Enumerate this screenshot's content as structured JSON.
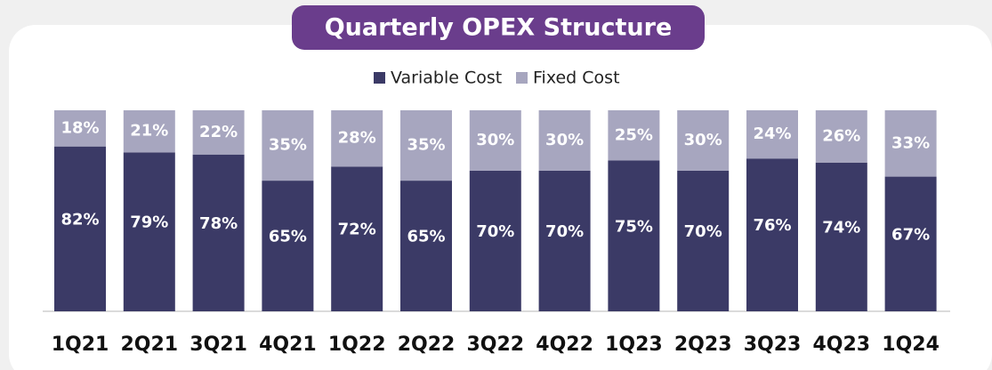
{
  "chart_data": {
    "type": "stacked_bar",
    "title": "Quarterly OPEX Structure",
    "categories": [
      "1Q21",
      "2Q21",
      "3Q21",
      "4Q21",
      "1Q22",
      "2Q22",
      "3Q22",
      "4Q22",
      "1Q23",
      "2Q23",
      "3Q23",
      "4Q23",
      "1Q24"
    ],
    "series": [
      {
        "name": "Variable Cost",
        "color": "#3b3a66",
        "values": [
          82,
          79,
          78,
          65,
          72,
          65,
          70,
          70,
          75,
          70,
          76,
          74,
          67
        ],
        "value_labels": [
          "82%",
          "79%",
          "78%",
          "65%",
          "72%",
          "65%",
          "70%",
          "70%",
          "75%",
          "70%",
          "76%",
          "74%",
          "67%"
        ]
      },
      {
        "name": "Fixed Cost",
        "color": "#a7a6bf",
        "values": [
          18,
          21,
          22,
          35,
          28,
          35,
          30,
          30,
          25,
          30,
          24,
          26,
          33
        ],
        "value_labels": [
          "18%",
          "21%",
          "22%",
          "35%",
          "28%",
          "35%",
          "30%",
          "30%",
          "25%",
          "30%",
          "24%",
          "26%",
          "33%"
        ]
      }
    ],
    "ylim": [
      0,
      100
    ],
    "title_color": "#6a3d8c"
  }
}
